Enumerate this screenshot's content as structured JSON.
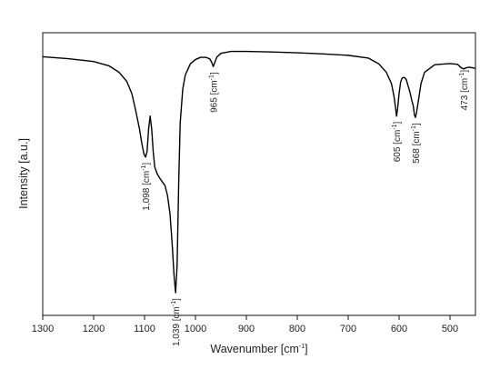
{
  "chart_data": {
    "type": "line",
    "title": "",
    "xlabel": "Wavenumber [cm",
    "xlabel_sup": "-1",
    "xlabel_end": "]",
    "ylabel": "Intensity [a.u.]",
    "xlim": [
      1300,
      450
    ],
    "x_reversed": true,
    "ylim": [
      0,
      100
    ],
    "y_ticks_shown": false,
    "grid": false,
    "legend": "none",
    "x_ticks": [
      1300,
      1200,
      1100,
      1000,
      900,
      800,
      700,
      600,
      500
    ],
    "series": [
      {
        "color": "#000000",
        "x": [
          1300,
          1250,
          1200,
          1170,
          1150,
          1135,
          1125,
          1118,
          1110,
          1105,
          1101,
          1098,
          1095,
          1092,
          1089,
          1086,
          1083,
          1080,
          1075,
          1070,
          1065,
          1060,
          1055,
          1050,
          1046,
          1042,
          1039,
          1036,
          1033,
          1030,
          1025,
          1020,
          1010,
          1000,
          990,
          980,
          972,
          968,
          965,
          962,
          958,
          950,
          930,
          900,
          850,
          800,
          750,
          700,
          660,
          640,
          625,
          615,
          610,
          607,
          605,
          603,
          600,
          597,
          594,
          590,
          586,
          582,
          578,
          575,
          572,
          570,
          568,
          566,
          562,
          557,
          550,
          530,
          500,
          485,
          478,
          473,
          468,
          462,
          450
        ],
        "y": [
          91.5,
          90.8,
          89.8,
          88.3,
          86.0,
          82.8,
          78.5,
          73.0,
          66.0,
          60.5,
          57.0,
          56.0,
          58.0,
          66.0,
          70.5,
          66.0,
          58.0,
          52.5,
          50.0,
          48.5,
          47.2,
          46.0,
          42.5,
          36.0,
          26.0,
          14.0,
          8.0,
          18.0,
          46.0,
          68.0,
          80.0,
          85.0,
          89.0,
          90.5,
          91.3,
          91.3,
          90.8,
          89.5,
          88.0,
          89.5,
          91.4,
          92.7,
          93.4,
          93.4,
          93.2,
          92.9,
          92.5,
          92.0,
          91.0,
          89.0,
          86.0,
          82.0,
          77.5,
          73.5,
          70.5,
          73.0,
          78.5,
          82.5,
          84.0,
          84.2,
          83.5,
          81.0,
          78.5,
          76.0,
          74.0,
          71.0,
          70.0,
          71.5,
          76.0,
          82.0,
          86.0,
          88.7,
          89.1,
          88.8,
          87.6,
          87.2,
          87.6,
          87.8,
          87.4
        ]
      }
    ],
    "annotations": [
      {
        "x": 1098,
        "y": 56.0,
        "num": "1,098",
        "unit": "[cm",
        "sup": "-1",
        "close": "]"
      },
      {
        "x": 1039,
        "y": 8.0,
        "num": "1,039",
        "unit": "[cm",
        "sup": "-1",
        "close": "]"
      },
      {
        "x": 965,
        "y": 88.0,
        "num": "965",
        "unit": "[cm",
        "sup": "-1",
        "close": "]"
      },
      {
        "x": 605,
        "y": 70.5,
        "num": "605",
        "unit": "[cm",
        "sup": "-1",
        "close": "]"
      },
      {
        "x": 568,
        "y": 70.0,
        "num": "568",
        "unit": "[cm",
        "sup": "-1",
        "close": "]"
      },
      {
        "x": 473,
        "y": 88.8,
        "num": "473",
        "unit": "[cm",
        "sup": "-1",
        "close": "]"
      }
    ]
  }
}
